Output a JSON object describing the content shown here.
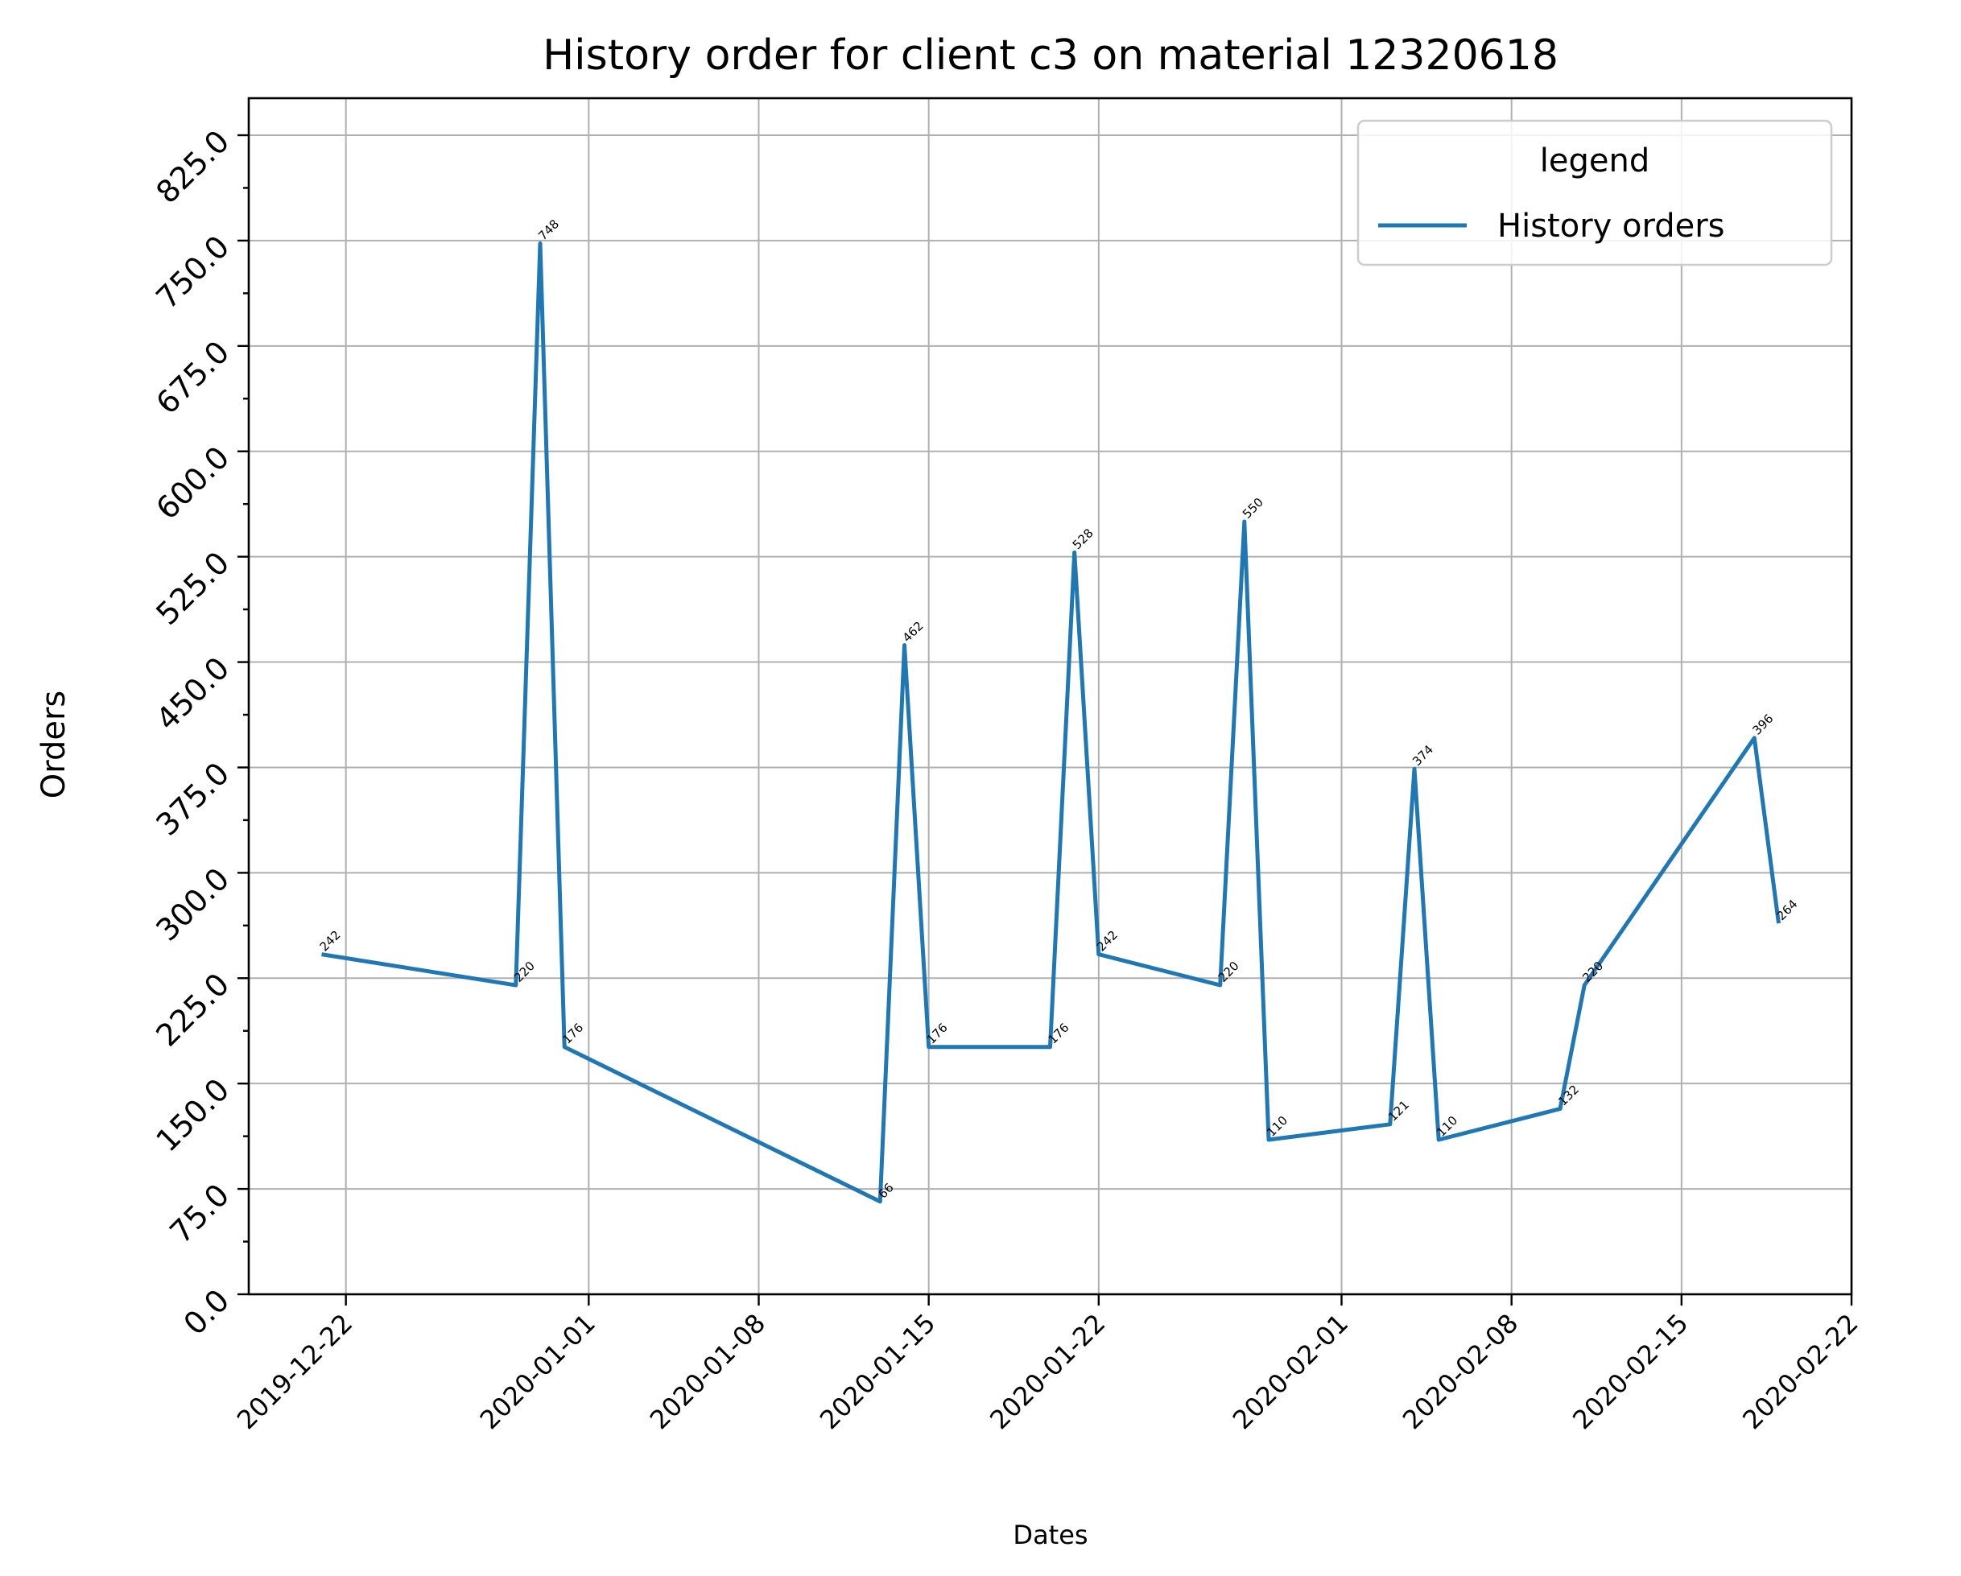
{
  "chart_data": {
    "type": "line",
    "title": "History order for client c3 on material 12320618",
    "xlabel": "Dates",
    "ylabel": "Orders",
    "xlim": [
      "2019-12-18",
      "2020-02-22"
    ],
    "ylim": [
      0,
      825
    ],
    "grid": true,
    "legend": {
      "title": "legend",
      "placement": "top-right"
    },
    "x_ticks": [
      "2019-12-22",
      "2020-01-01",
      "2020-01-08",
      "2020-01-15",
      "2020-01-22",
      "2020-02-01",
      "2020-02-08",
      "2020-02-15",
      "2020-02-22"
    ],
    "y_ticks": [
      "0.0",
      "75.0",
      "150.0",
      "225.0",
      "300.0",
      "375.0",
      "450.0",
      "525.0",
      "600.0",
      "675.0",
      "750.0",
      "825.0"
    ],
    "series": [
      {
        "name": "History orders",
        "color": "#1f77b4",
        "x": [
          "2019-12-21",
          "2019-12-29",
          "2019-12-30",
          "2019-12-31",
          "2020-01-13",
          "2020-01-14",
          "2020-01-15",
          "2020-01-20",
          "2020-01-21",
          "2020-01-22",
          "2020-01-27",
          "2020-01-28",
          "2020-01-29",
          "2020-02-03",
          "2020-02-04",
          "2020-02-05",
          "2020-02-10",
          "2020-02-11",
          "2020-02-18",
          "2020-02-19"
        ],
        "values": [
          242,
          220,
          748,
          176,
          66,
          462,
          176,
          176,
          528,
          242,
          220,
          550,
          110,
          121,
          374,
          110,
          132,
          220,
          396,
          264
        ],
        "labels": [
          "242",
          "220",
          "748",
          "176",
          "66",
          "462",
          "176",
          "176",
          "528",
          "242",
          "220",
          "550",
          "110",
          "121",
          "374",
          "110",
          "132",
          "220",
          "396",
          "264"
        ]
      }
    ]
  }
}
